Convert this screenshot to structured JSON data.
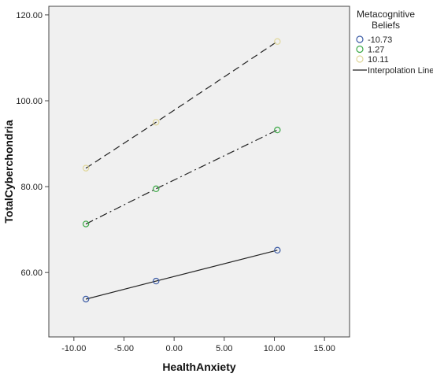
{
  "chart_data": {
    "type": "scatter",
    "xlabel": "HealthAnxiety",
    "ylabel": "TotalCyberchondria",
    "xlim": [
      -12.5,
      17.5
    ],
    "ylim": [
      45,
      122
    ],
    "x_ticks": [
      -10,
      -5,
      0,
      5,
      10,
      15
    ],
    "x_tick_labels": [
      "-10.00",
      "-5.00",
      "0.00",
      "5.00",
      "10.00",
      "15.00"
    ],
    "y_ticks": [
      60,
      80,
      100,
      120
    ],
    "y_tick_labels": [
      "60.00",
      "80.00",
      "100.00",
      "120.00"
    ],
    "grid": false,
    "background_color": "#f0f0f0",
    "legend": {
      "title_lines": [
        "Metacognitive",
        "Beliefs"
      ],
      "placement": "right",
      "interpolation_label": "Interpolation Line"
    },
    "series": [
      {
        "name": "-10.73",
        "color": "#3b5ba5",
        "line_style": "solid",
        "x": [
          -8.8,
          -1.8,
          10.3
        ],
        "y": [
          53.8,
          58.0,
          65.2
        ]
      },
      {
        "name": "1.27",
        "color": "#3aa845",
        "line_style": "dash-dot",
        "x": [
          -8.8,
          -1.8,
          10.3
        ],
        "y": [
          71.3,
          79.5,
          93.2
        ]
      },
      {
        "name": "10.11",
        "color": "#e0d79a",
        "line_style": "dashed",
        "x": [
          -8.8,
          -1.8,
          10.3
        ],
        "y": [
          84.3,
          95.0,
          113.8
        ]
      }
    ]
  }
}
